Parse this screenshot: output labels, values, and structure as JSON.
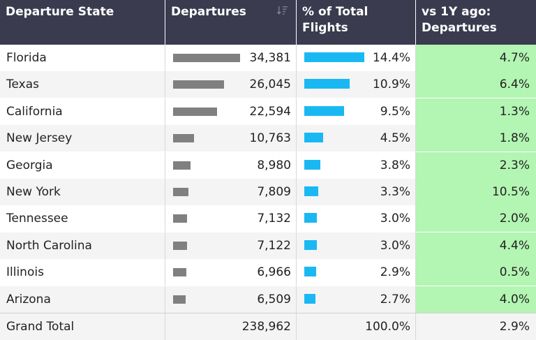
{
  "header": {
    "col_state": "Departure State",
    "col_departures": "Departures",
    "col_pct_line1": "% of Total",
    "col_pct_line2": "Flights",
    "col_vs_line1": "vs 1Y ago:",
    "col_vs_line2": "Departures",
    "sort_icon": "sort-icon"
  },
  "chart_data": {
    "type": "table",
    "columns": [
      "Departure State",
      "Departures",
      "% of Total Flights",
      "vs 1Y ago: Departures"
    ],
    "rows": [
      {
        "state": "Florida",
        "departures": 34381,
        "departures_label": "34,381",
        "pct": 14.4,
        "pct_label": "14.4%",
        "vs": "4.7%"
      },
      {
        "state": "Texas",
        "departures": 26045,
        "departures_label": "26,045",
        "pct": 10.9,
        "pct_label": "10.9%",
        "vs": "6.4%"
      },
      {
        "state": "California",
        "departures": 22594,
        "departures_label": "22,594",
        "pct": 9.5,
        "pct_label": "9.5%",
        "vs": "1.3%"
      },
      {
        "state": "New Jersey",
        "departures": 10763,
        "departures_label": "10,763",
        "pct": 4.5,
        "pct_label": "4.5%",
        "vs": "1.8%"
      },
      {
        "state": "Georgia",
        "departures": 8980,
        "departures_label": "8,980",
        "pct": 3.8,
        "pct_label": "3.8%",
        "vs": "2.3%"
      },
      {
        "state": "New York",
        "departures": 7809,
        "departures_label": "7,809",
        "pct": 3.3,
        "pct_label": "3.3%",
        "vs": "10.5%"
      },
      {
        "state": "Tennessee",
        "departures": 7132,
        "departures_label": "7,132",
        "pct": 3.0,
        "pct_label": "3.0%",
        "vs": "2.0%"
      },
      {
        "state": "North Carolina",
        "departures": 7122,
        "departures_label": "7,122",
        "pct": 3.0,
        "pct_label": "3.0%",
        "vs": "4.4%"
      },
      {
        "state": "Illinois",
        "departures": 6966,
        "departures_label": "6,966",
        "pct": 2.9,
        "pct_label": "2.9%",
        "vs": "0.5%"
      },
      {
        "state": "Arizona",
        "departures": 6509,
        "departures_label": "6,509",
        "pct": 2.7,
        "pct_label": "2.7%",
        "vs": "4.0%"
      }
    ],
    "total": {
      "label": "Grand Total",
      "departures": "238,962",
      "pct": "100.0%",
      "vs": "2.9%"
    },
    "colors": {
      "header_bg": "#3a3b4e",
      "departure_bar": "#808080",
      "pct_bar": "#1ab8f3",
      "vs_bg": "#b3f5b3"
    }
  }
}
